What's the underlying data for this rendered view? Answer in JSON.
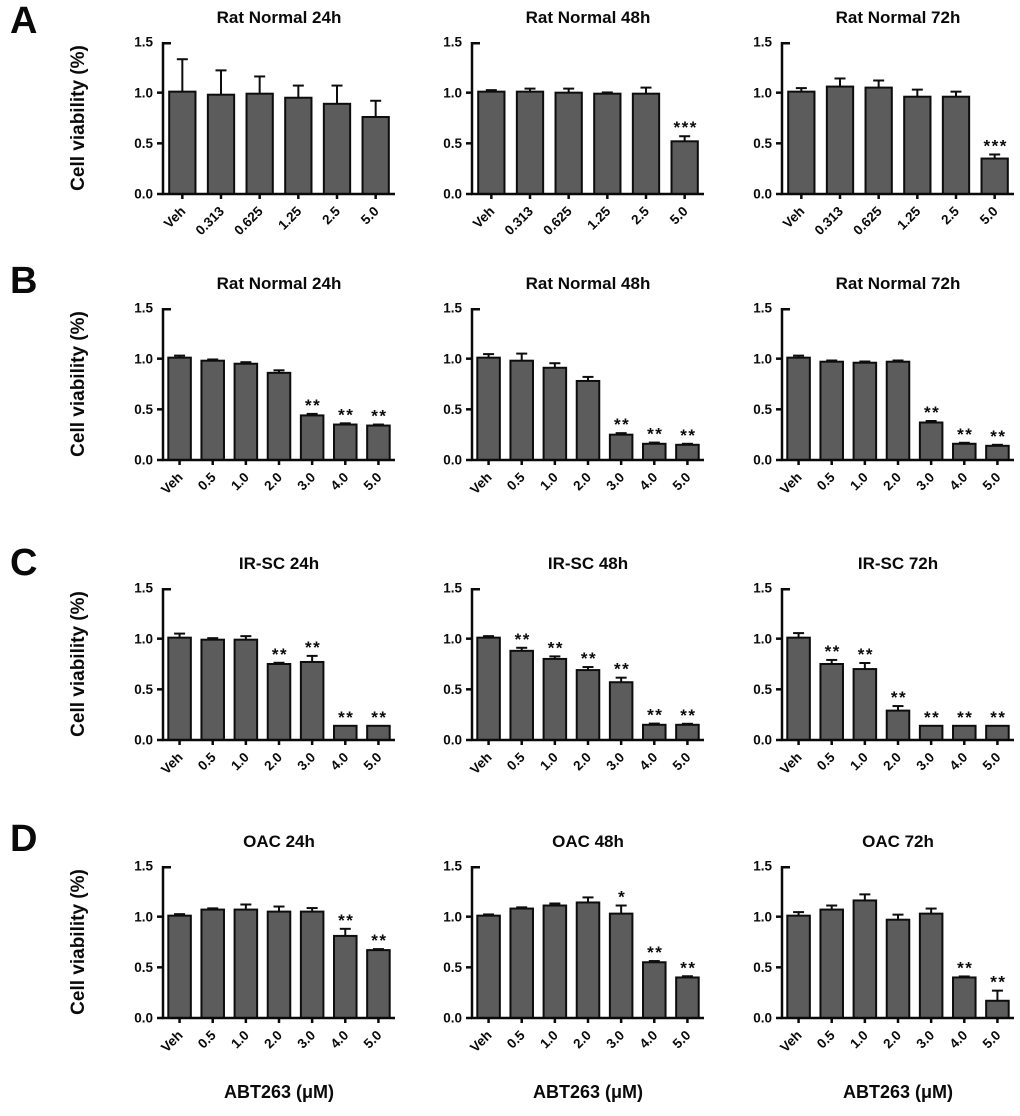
{
  "figure": {
    "row_labels": [
      "A",
      "B",
      "C",
      "D"
    ],
    "ylabel": "Cell viability (%)",
    "xlabel": "ABT263 (μM)",
    "yticks": [
      "0.0",
      "0.5",
      "1.0",
      "1.5"
    ],
    "ylim": [
      0,
      1.5
    ],
    "bar_color": "#5c5c5c",
    "axis_color": "#0a0a0a",
    "grid": false,
    "legend": "none"
  },
  "chart_data": [
    {
      "type": "bar",
      "row": "A",
      "title": "Rat Normal 24h",
      "categories": [
        "Veh",
        "0.313",
        "0.625",
        "1.25",
        "2.5",
        "5.0"
      ],
      "values": [
        1.01,
        0.98,
        0.99,
        0.95,
        0.89,
        0.76
      ],
      "errors": [
        0.32,
        0.24,
        0.17,
        0.12,
        0.18,
        0.16
      ],
      "sig": [
        "",
        "",
        "",
        "",
        "",
        ""
      ]
    },
    {
      "type": "bar",
      "row": "A",
      "title": "Rat Normal 48h",
      "categories": [
        "Veh",
        "0.313",
        "0.625",
        "1.25",
        "2.5",
        "5.0"
      ],
      "values": [
        1.01,
        1.01,
        1.0,
        0.99,
        0.99,
        0.52
      ],
      "errors": [
        0.015,
        0.03,
        0.04,
        0.012,
        0.06,
        0.05
      ],
      "sig": [
        "",
        "",
        "",
        "",
        "",
        "***"
      ]
    },
    {
      "type": "bar",
      "row": "A",
      "title": "Rat Normal 72h",
      "categories": [
        "Veh",
        "0.313",
        "0.625",
        "1.25",
        "2.5",
        "5.0"
      ],
      "values": [
        1.01,
        1.06,
        1.05,
        0.96,
        0.96,
        0.35
      ],
      "errors": [
        0.035,
        0.08,
        0.07,
        0.07,
        0.05,
        0.04
      ],
      "sig": [
        "",
        "",
        "",
        "",
        "",
        "***"
      ]
    },
    {
      "type": "bar",
      "row": "B",
      "title": "Rat Normal 24h",
      "categories": [
        "Veh",
        "0.5",
        "1.0",
        "2.0",
        "3.0",
        "4.0",
        "5.0"
      ],
      "values": [
        1.01,
        0.98,
        0.95,
        0.86,
        0.44,
        0.35,
        0.34
      ],
      "errors": [
        0.02,
        0.012,
        0.015,
        0.025,
        0.015,
        0.012,
        0.01
      ],
      "sig": [
        "",
        "",
        "",
        "",
        "**",
        "**",
        "**"
      ]
    },
    {
      "type": "bar",
      "row": "B",
      "title": "Rat Normal 48h",
      "categories": [
        "Veh",
        "0.5",
        "1.0",
        "2.0",
        "3.0",
        "4.0",
        "5.0"
      ],
      "values": [
        1.01,
        0.98,
        0.91,
        0.78,
        0.25,
        0.16,
        0.15
      ],
      "errors": [
        0.035,
        0.07,
        0.045,
        0.04,
        0.015,
        0.012,
        0.01
      ],
      "sig": [
        "",
        "",
        "",
        "",
        "**",
        "**",
        "**"
      ]
    },
    {
      "type": "bar",
      "row": "B",
      "title": "Rat Normal 72h",
      "categories": [
        "Veh",
        "0.5",
        "1.0",
        "2.0",
        "3.0",
        "4.0",
        "5.0"
      ],
      "values": [
        1.01,
        0.97,
        0.96,
        0.97,
        0.37,
        0.16,
        0.14
      ],
      "errors": [
        0.02,
        0.012,
        0.012,
        0.012,
        0.015,
        0.01,
        0.01
      ],
      "sig": [
        "",
        "",
        "",
        "",
        "**",
        "**",
        "**"
      ]
    },
    {
      "type": "bar",
      "row": "C",
      "title": "IR-SC 24h",
      "categories": [
        "Veh",
        "0.5",
        "1.0",
        "2.0",
        "3.0",
        "4.0",
        "5.0"
      ],
      "values": [
        1.01,
        0.99,
        0.99,
        0.75,
        0.77,
        0.14,
        0.14
      ],
      "errors": [
        0.04,
        0.015,
        0.035,
        0.012,
        0.06,
        0,
        0
      ],
      "sig": [
        "",
        "",
        "",
        "**",
        "**",
        "**",
        "**"
      ]
    },
    {
      "type": "bar",
      "row": "C",
      "title": "IR-SC 48h",
      "categories": [
        "Veh",
        "0.5",
        "1.0",
        "2.0",
        "3.0",
        "4.0",
        "5.0"
      ],
      "values": [
        1.01,
        0.88,
        0.8,
        0.69,
        0.57,
        0.15,
        0.15
      ],
      "errors": [
        0.015,
        0.03,
        0.025,
        0.03,
        0.045,
        0.012,
        0.01
      ],
      "sig": [
        "",
        "**",
        "**",
        "**",
        "**",
        "**",
        "**"
      ]
    },
    {
      "type": "bar",
      "row": "C",
      "title": "IR-SC 72h",
      "categories": [
        "Veh",
        "0.5",
        "1.0",
        "2.0",
        "3.0",
        "4.0",
        "5.0"
      ],
      "values": [
        1.01,
        0.75,
        0.7,
        0.29,
        0.14,
        0.14,
        0.14
      ],
      "errors": [
        0.045,
        0.04,
        0.06,
        0.045,
        0,
        0,
        0
      ],
      "sig": [
        "",
        "**",
        "**",
        "**",
        "**",
        "**",
        "**"
      ]
    },
    {
      "type": "bar",
      "row": "D",
      "title": "OAC 24h",
      "categories": [
        "Veh",
        "0.5",
        "1.0",
        "2.0",
        "3.0",
        "4.0",
        "5.0"
      ],
      "values": [
        1.01,
        1.07,
        1.07,
        1.05,
        1.05,
        0.81,
        0.67
      ],
      "errors": [
        0.015,
        0.012,
        0.05,
        0.05,
        0.035,
        0.07,
        0.01
      ],
      "sig": [
        "",
        "",
        "",
        "",
        "",
        "**",
        "**"
      ]
    },
    {
      "type": "bar",
      "row": "D",
      "title": "OAC 48h",
      "categories": [
        "Veh",
        "0.5",
        "1.0",
        "2.0",
        "3.0",
        "4.0",
        "5.0"
      ],
      "values": [
        1.01,
        1.08,
        1.11,
        1.14,
        1.03,
        0.55,
        0.4
      ],
      "errors": [
        0.012,
        0.012,
        0.02,
        0.05,
        0.08,
        0.012,
        0.012
      ],
      "sig": [
        "",
        "",
        "",
        "",
        "*",
        "**",
        "**"
      ]
    },
    {
      "type": "bar",
      "row": "D",
      "title": "OAC 72h",
      "categories": [
        "Veh",
        "0.5",
        "1.0",
        "2.0",
        "3.0",
        "4.0",
        "5.0"
      ],
      "values": [
        1.01,
        1.07,
        1.16,
        0.97,
        1.03,
        0.4,
        0.17
      ],
      "errors": [
        0.035,
        0.04,
        0.06,
        0.05,
        0.05,
        0.01,
        0.1
      ],
      "sig": [
        "",
        "",
        "",
        "",
        "",
        "**",
        "**"
      ]
    }
  ]
}
